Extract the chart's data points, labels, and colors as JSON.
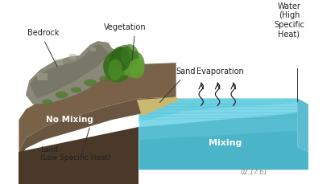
{
  "labels": {
    "bedrock": "Bedrock",
    "vegetation": "Vegetation",
    "sand": "Sand",
    "evaporation": "Evaporation",
    "water": "Water\n(High\nSpecific\nHeat)",
    "no_mixing": "No Mixing",
    "mixing": "Mixing",
    "land": "Land\n(Low Specific Heat)",
    "code": "02.17.b1"
  },
  "colors": {
    "water_surf": "#7ed8ea",
    "water_surf2": "#5ac8dc",
    "water_right": "#5abcce",
    "water_front": "#4ab4c8",
    "water_front2": "#60c4d8",
    "land_top": "#6a5540",
    "land_slope": "#7a6248",
    "land_front": "#4a3828",
    "rock_main": "#8a8878",
    "rock_edge": "#666655",
    "rock_dark": "#6a6858",
    "rock_light": "#aaa898",
    "veg_1": "#3a7020",
    "veg_2": "#4a8828",
    "veg_3": "#5a9830",
    "veg_4": "#2d6018",
    "veg_5": "#3a7820",
    "veg_6": "#4a8825",
    "veg_7": "#60a030",
    "grass": "#4a7a25",
    "sand_color": "#c8b870",
    "ripple": "#2888a0",
    "arrow": "#111111",
    "line": "#333333",
    "white": "#ffffff",
    "text_dark": "#222222",
    "text_gray": "#888888"
  }
}
